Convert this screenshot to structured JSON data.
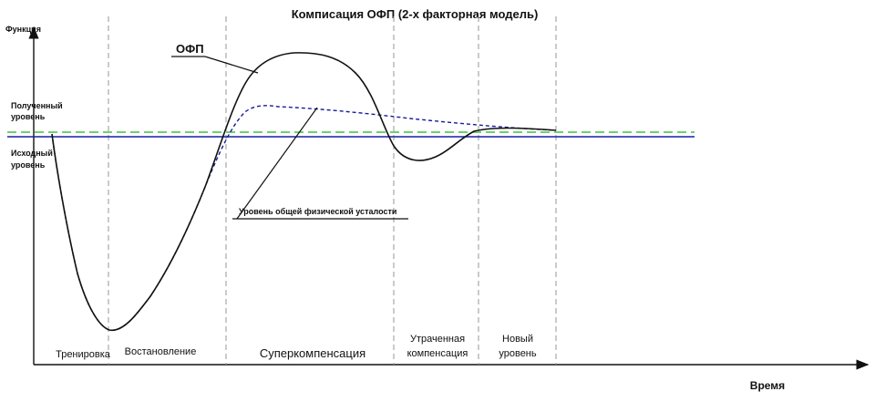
{
  "title": "Комписация ОФП (2-х факторная модель)",
  "axes": {
    "y_label": "Функция",
    "x_label": "Время"
  },
  "levels": {
    "obtained_line1": "Полученный",
    "obtained_line2": "уровень",
    "initial_line1": "Исходный",
    "initial_line2": "уровень"
  },
  "curves": {
    "ofp_label": "ОФП",
    "fatigue_label": "Уровень общей физической усталости"
  },
  "phases": {
    "training": "Тренировка",
    "recovery": "Востановление",
    "supercompensation": "Суперкомпенсация",
    "lost_line1": "Утраченная",
    "lost_line2": "компенсация",
    "new_line1": "Новый",
    "new_line2": "уровень"
  },
  "colors": {
    "ofp_curve": "#111111",
    "fatigue_curve": "#1a1a9c",
    "initial_level": "#1c1caa",
    "obtained_level": "#3cc43c",
    "phase_divider": "#a0a0a0"
  }
}
